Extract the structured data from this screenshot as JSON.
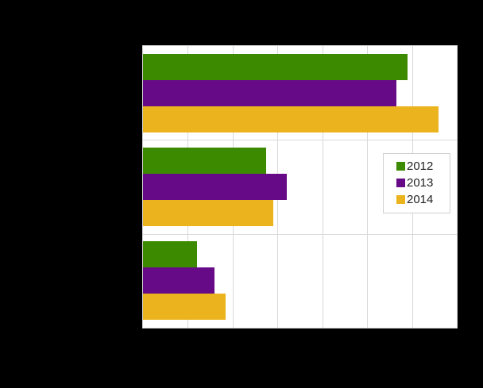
{
  "page": {
    "background_color": "#000000",
    "outer_text_visible": false
  },
  "chart_data": {
    "type": "bar",
    "orientation": "horizontal",
    "categories": [
      "",
      "",
      ""
    ],
    "category_labels_visible": false,
    "axis_tick_labels_visible": false,
    "title_visible": false,
    "series": [
      {
        "name": "2012",
        "color": "#3c8a00",
        "values": [
          5.9,
          2.75,
          1.2
        ]
      },
      {
        "name": "2013",
        "color": "#660a87",
        "values": [
          5.65,
          3.2,
          1.6
        ]
      },
      {
        "name": "2014",
        "color": "#ebb41e",
        "values": [
          6.6,
          2.9,
          1.85
        ]
      }
    ],
    "xlim": [
      0,
      7
    ],
    "x_tick_interval": 1,
    "grid": true,
    "grid_color": "#d9d9d9",
    "plot_background": "#ffffff",
    "legend_position": "right-center",
    "legend": {
      "entries": [
        "2012",
        "2013",
        "2014"
      ],
      "background": "#ffffff",
      "border_color": "#d0d0d0",
      "text_color": "#222222"
    }
  }
}
